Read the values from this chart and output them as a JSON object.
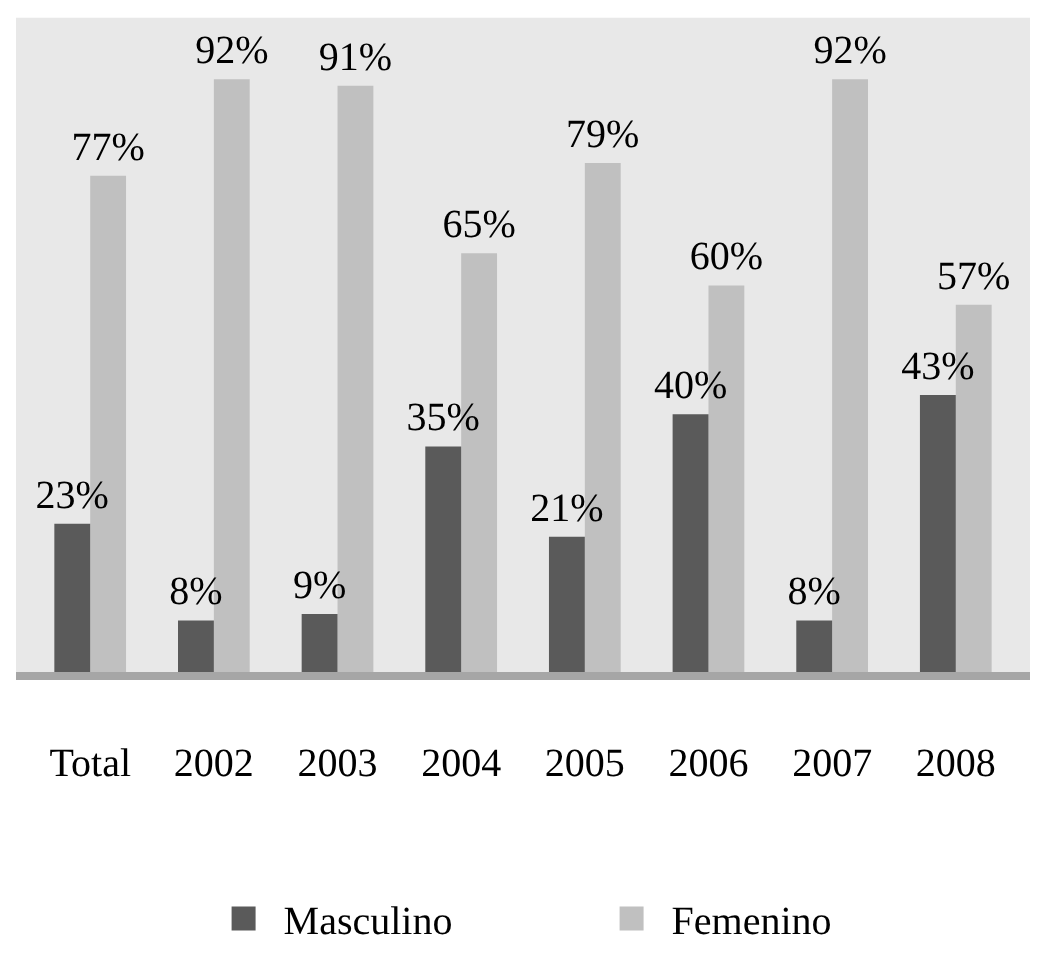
{
  "chart_data": {
    "type": "bar",
    "categories": [
      "Total",
      "2002",
      "2003",
      "2004",
      "2005",
      "2006",
      "2007",
      "2008"
    ],
    "series": [
      {
        "name": "Masculino",
        "color": "#5a5a5a",
        "values": [
          23,
          8,
          9,
          35,
          21,
          40,
          8,
          43
        ],
        "value_labels": [
          "23%",
          "8%",
          "9%",
          "35%",
          "21%",
          "40%",
          "8%",
          "43%"
        ]
      },
      {
        "name": "Femenino",
        "color": "#c0c0c0",
        "values": [
          77,
          92,
          91,
          65,
          79,
          60,
          92,
          57
        ],
        "value_labels": [
          "77%",
          "92%",
          "91%",
          "65%",
          "79%",
          "60%",
          "92%",
          "57%"
        ]
      }
    ],
    "legend": "bottom",
    "tick_labels": "x"
  }
}
